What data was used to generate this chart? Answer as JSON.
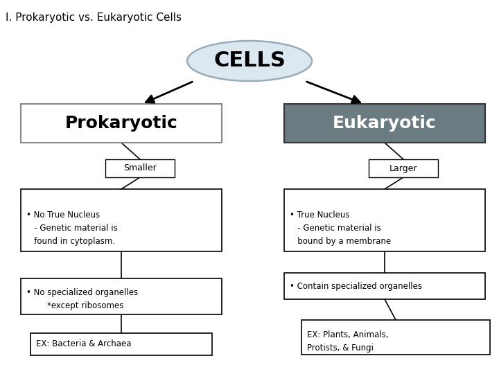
{
  "title": "I. Prokaryotic vs. Eukaryotic Cells",
  "title_fontsize": 11,
  "bg_color": "#ffffff",
  "cells_label": "CELLS",
  "cells_ellipse_facecolor": "#dce8f0",
  "cells_ellipse_edgecolor": "#99aabb",
  "prokaryotic_label": "Prokaryotic",
  "prokaryotic_box_facecolor": "#ffffff",
  "prokaryotic_box_edgecolor": "#888888",
  "prokaryotic_text_color": "#000000",
  "eukaryotic_label": "Eukaryotic",
  "eukaryotic_box_facecolor": "#6b7b82",
  "eukaryotic_box_edgecolor": "#333333",
  "eukaryotic_text_color": "#ffffff",
  "smaller_label": "Smaller",
  "larger_label": "Larger",
  "prok_nucleus_text": "• No True Nucleus\n   - Genetic material is\n   found in cytoplasm.",
  "euk_nucleus_text": "• True Nucleus\n   - Genetic material is\n   bound by a membrane",
  "prok_organelles_text": "• No specialized organelles\n        *except ribosomes",
  "euk_organelles_text": "• Contain specialized organelles",
  "prok_example_text": "EX: Bacteria & Archaea",
  "euk_example_text": "EX: Plants, Animals,\nProtists, & Fungi",
  "arrow_color": "#000000",
  "box_edgecolor": "#000000",
  "box_facecolor": "#ffffff",
  "font_family": "DejaVu Sans"
}
